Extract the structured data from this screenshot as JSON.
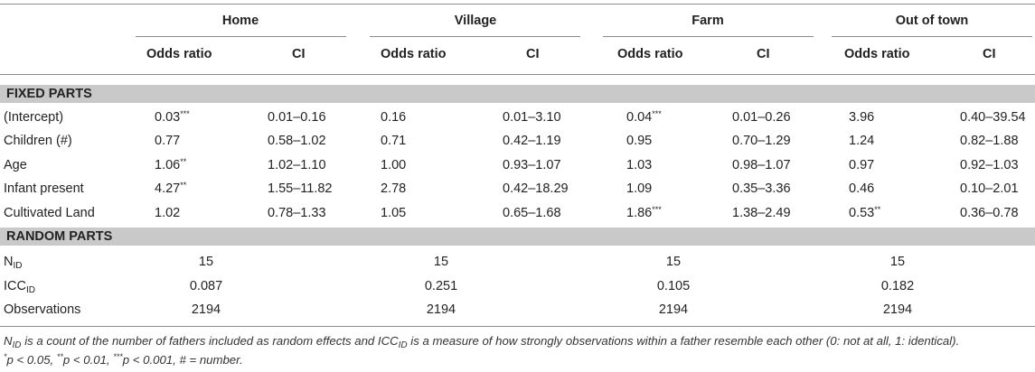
{
  "groups": [
    {
      "name": "Home",
      "cols": [
        "Odds ratio",
        "CI"
      ]
    },
    {
      "name": "Village",
      "cols": [
        "Odds ratio",
        "CI"
      ]
    },
    {
      "name": "Farm",
      "cols": [
        "Odds ratio",
        "CI"
      ]
    },
    {
      "name": "Out of town",
      "cols": [
        "Odds ratio",
        "CI"
      ]
    }
  ],
  "fixed_title": "FIXED PARTS",
  "fixed_rows": [
    {
      "label": "(Intercept)",
      "cells": [
        [
          "0.03",
          "***"
        ],
        [
          "0.01–0.16",
          ""
        ],
        [
          "0.16",
          ""
        ],
        [
          "0.01–3.10",
          ""
        ],
        [
          "0.04",
          "***"
        ],
        [
          "0.01–0.26",
          ""
        ],
        [
          "3.96",
          ""
        ],
        [
          "0.40–39.54",
          ""
        ]
      ]
    },
    {
      "label": "Children (#)",
      "cells": [
        [
          "0.77",
          ""
        ],
        [
          "0.58–1.02",
          ""
        ],
        [
          "0.71",
          ""
        ],
        [
          "0.42–1.19",
          ""
        ],
        [
          "0.95",
          ""
        ],
        [
          "0.70–1.29",
          ""
        ],
        [
          "1.24",
          ""
        ],
        [
          "0.82–1.88",
          ""
        ]
      ]
    },
    {
      "label": "Age",
      "cells": [
        [
          "1.06",
          "**"
        ],
        [
          "1.02–1.10",
          ""
        ],
        [
          "1.00",
          ""
        ],
        [
          "0.93–1.07",
          ""
        ],
        [
          "1.03",
          ""
        ],
        [
          "0.98–1.07",
          ""
        ],
        [
          "0.97",
          ""
        ],
        [
          "0.92–1.03",
          ""
        ]
      ]
    },
    {
      "label": "Infant present",
      "cells": [
        [
          "4.27",
          "**"
        ],
        [
          "1.55–11.82",
          ""
        ],
        [
          "2.78",
          ""
        ],
        [
          "0.42–18.29",
          ""
        ],
        [
          "1.09",
          ""
        ],
        [
          "0.35–3.36",
          ""
        ],
        [
          "0.46",
          ""
        ],
        [
          "0.10–2.01",
          ""
        ]
      ]
    },
    {
      "label": "Cultivated Land",
      "cells": [
        [
          "1.02",
          ""
        ],
        [
          "0.78–1.33",
          ""
        ],
        [
          "1.05",
          ""
        ],
        [
          "0.65–1.68",
          ""
        ],
        [
          "1.86",
          "***"
        ],
        [
          "1.38–2.49",
          ""
        ],
        [
          "0.53",
          "**"
        ],
        [
          "0.36–0.78",
          ""
        ]
      ]
    }
  ],
  "random_title": "RANDOM PARTS",
  "random_rows": [
    {
      "label_main": "N",
      "label_sub": "ID",
      "values": [
        "15",
        "15",
        "15",
        "15"
      ]
    },
    {
      "label_main": "ICC",
      "label_sub": "ID",
      "values": [
        "0.087",
        "0.251",
        "0.105",
        "0.182"
      ]
    },
    {
      "label_main": "Observations",
      "label_sub": "",
      "values": [
        "2194",
        "2194",
        "2194",
        "2194"
      ]
    }
  ],
  "note": {
    "n": "N",
    "n_sub": "ID",
    "part1": " is a count of the number of fathers included as random effects and ICC",
    "icc_sub": "ID",
    "part2": " is a measure of how strongly observations within a father resemble each other (0: not at all, 1: identical).",
    "line2_star1": "*",
    "line2_a": "p < 0.05, ",
    "line2_star2": "**",
    "line2_b": "p < 0.01, ",
    "line2_star3": "***",
    "line2_c": "p < 0.001, # = number."
  }
}
